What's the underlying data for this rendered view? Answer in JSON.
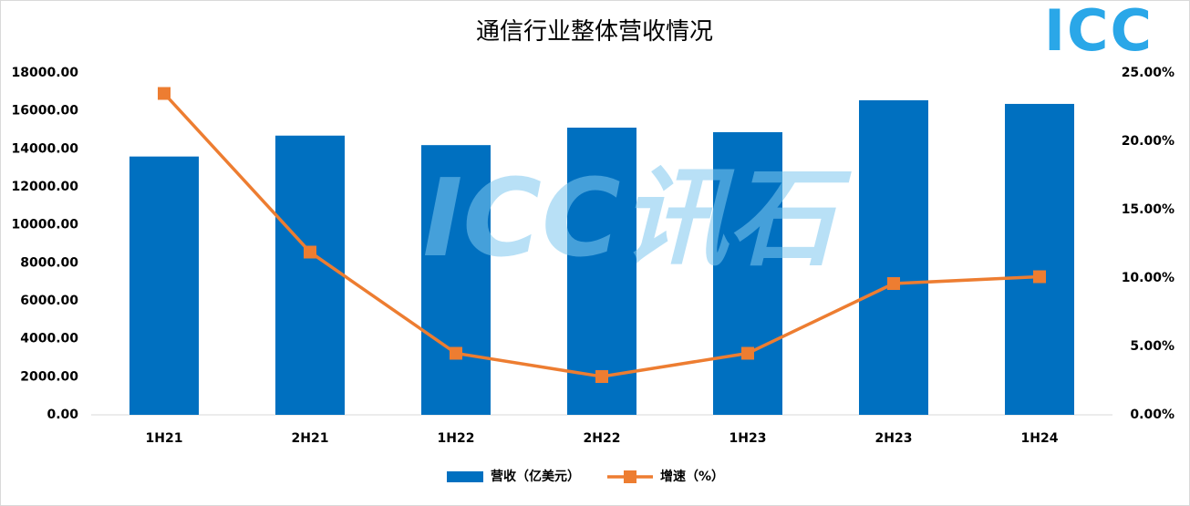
{
  "chart_data": {
    "type": "bar-line",
    "title": "通信行业整体营收情况",
    "watermark": "ICC讯石",
    "logo": "ICC",
    "categories": [
      "1H21",
      "2H21",
      "1H22",
      "2H22",
      "1H23",
      "2H23",
      "1H24"
    ],
    "series": [
      {
        "name": "营收（亿美元）",
        "type": "bar",
        "color": "#0070c0",
        "values": [
          13600,
          14700,
          14200,
          15120,
          14880,
          16560,
          16370
        ]
      },
      {
        "name": "增速（%）",
        "type": "line",
        "axis": "y2",
        "color": "#ed7d31",
        "values": [
          23.5,
          11.9,
          4.5,
          2.8,
          4.5,
          9.6,
          10.1
        ]
      }
    ],
    "ylim": [
      0,
      18000
    ],
    "yticks": [
      {
        "value": 0,
        "label": "0.00"
      },
      {
        "value": 2000,
        "label": "2000.00"
      },
      {
        "value": 4000,
        "label": "4000.00"
      },
      {
        "value": 6000,
        "label": "6000.00"
      },
      {
        "value": 8000,
        "label": "8000.00"
      },
      {
        "value": 10000,
        "label": "10000.00"
      },
      {
        "value": 12000,
        "label": "12000.00"
      },
      {
        "value": 14000,
        "label": "14000.00"
      },
      {
        "value": 16000,
        "label": "16000.00"
      },
      {
        "value": 18000,
        "label": "18000.00"
      }
    ],
    "y2lim": [
      0,
      25
    ],
    "y2ticks": [
      {
        "value": 0,
        "label": "0.00%"
      },
      {
        "value": 5,
        "label": "5.00%"
      },
      {
        "value": 10,
        "label": "10.00%"
      },
      {
        "value": 15,
        "label": "15.00%"
      },
      {
        "value": 20,
        "label": "20.00%"
      },
      {
        "value": 25,
        "label": "25.00%"
      }
    ],
    "grid": false,
    "legend": "bottom"
  }
}
